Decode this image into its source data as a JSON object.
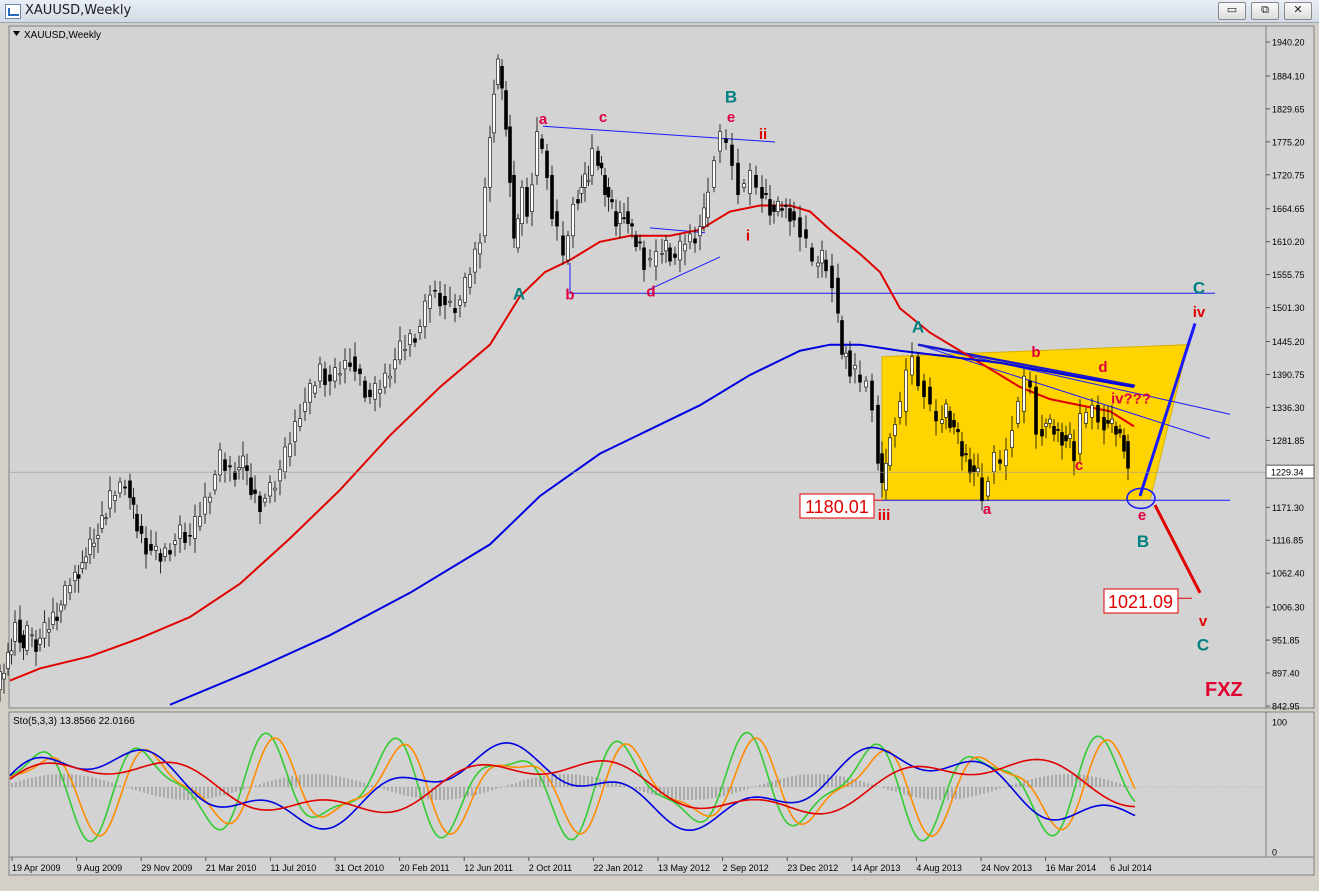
{
  "window": {
    "title": "XAUUSD,Weekly",
    "buttons": {
      "minimize": "▭",
      "restore": "⧉",
      "close": "✕"
    }
  },
  "chart_data": {
    "type": "line",
    "symbol_label": "XAUUSD,Weekly",
    "price_axis": {
      "ticks": [
        "1940.20",
        "1884.10",
        "1829.65",
        "1775.20",
        "1720.75",
        "1664.65",
        "1610.20",
        "1555.75",
        "1501.30",
        "1445.20",
        "1390.75",
        "1336.30",
        "1281.85",
        "1229.34",
        "1171.30",
        "1116.85",
        "1062.40",
        "1006.30",
        "951.85",
        "897.40",
        "842.95"
      ],
      "current_price": "1229.34",
      "ylim": [
        842.95,
        1940.2
      ]
    },
    "time_axis": {
      "labels": [
        "19 Apr 2009",
        "9 Aug 2009",
        "29 Nov 2009",
        "21 Mar 2010",
        "11 Jul 2010",
        "31 Oct 2010",
        "20 Feb 2011",
        "12 Jun 2011",
        "2 Oct 2011",
        "22 Jan 2012",
        "13 May 2012",
        "2 Sep 2012",
        "23 Dec 2012",
        "14 Apr 2013",
        "4 Aug 2013",
        "24 Nov 2013",
        "16 Mar 2014",
        "6 Jul 2014"
      ]
    },
    "price_series": [
      [
        0,
        870
      ],
      [
        8,
        905
      ],
      [
        15,
        950
      ],
      [
        20,
        985
      ],
      [
        27,
        935
      ],
      [
        32,
        960
      ],
      [
        40,
        945
      ],
      [
        49,
        965
      ],
      [
        57,
        990
      ],
      [
        65,
        1010
      ],
      [
        75,
        1050
      ],
      [
        86,
        1080
      ],
      [
        98,
        1120
      ],
      [
        110,
        1170
      ],
      [
        120,
        1195
      ],
      [
        130,
        1215
      ],
      [
        137,
        1160
      ],
      [
        146,
        1120
      ],
      [
        156,
        1100
      ],
      [
        165,
        1090
      ],
      [
        175,
        1110
      ],
      [
        185,
        1130
      ],
      [
        195,
        1120
      ],
      [
        205,
        1160
      ],
      [
        215,
        1200
      ],
      [
        225,
        1250
      ],
      [
        235,
        1230
      ],
      [
        247,
        1240
      ],
      [
        255,
        1200
      ],
      [
        265,
        1180
      ],
      [
        275,
        1200
      ],
      [
        285,
        1230
      ],
      [
        295,
        1280
      ],
      [
        305,
        1330
      ],
      [
        315,
        1360
      ],
      [
        325,
        1400
      ],
      [
        335,
        1380
      ],
      [
        345,
        1400
      ],
      [
        355,
        1420
      ],
      [
        365,
        1380
      ],
      [
        375,
        1350
      ],
      [
        385,
        1370
      ],
      [
        395,
        1400
      ],
      [
        405,
        1430
      ],
      [
        415,
        1450
      ],
      [
        425,
        1470
      ],
      [
        435,
        1530
      ],
      [
        445,
        1520
      ],
      [
        455,
        1500
      ],
      [
        465,
        1510
      ],
      [
        475,
        1560
      ],
      [
        485,
        1620
      ],
      [
        490,
        1700
      ],
      [
        494,
        1790
      ],
      [
        498,
        1870
      ],
      [
        502,
        1900
      ],
      [
        506,
        1860
      ],
      [
        510,
        1800
      ],
      [
        514,
        1720
      ],
      [
        518,
        1600
      ],
      [
        522,
        1640
      ],
      [
        527,
        1700
      ],
      [
        532,
        1660
      ],
      [
        537,
        1720
      ],
      [
        542,
        1780
      ],
      [
        547,
        1760
      ],
      [
        552,
        1720
      ],
      [
        557,
        1660
      ],
      [
        563,
        1620
      ],
      [
        568,
        1580
      ],
      [
        573,
        1620
      ],
      [
        578,
        1680
      ],
      [
        585,
        1700
      ],
      [
        592,
        1720
      ],
      [
        598,
        1760
      ],
      [
        605,
        1720
      ],
      [
        612,
        1680
      ],
      [
        620,
        1640
      ],
      [
        628,
        1660
      ],
      [
        636,
        1620
      ],
      [
        644,
        1600
      ],
      [
        650,
        1580
      ],
      [
        656,
        1570
      ],
      [
        662,
        1590
      ],
      [
        670,
        1600
      ],
      [
        680,
        1580
      ],
      [
        690,
        1610
      ],
      [
        700,
        1620
      ],
      [
        708,
        1650
      ],
      [
        714,
        1700
      ],
      [
        720,
        1760
      ],
      [
        726,
        1780
      ],
      [
        732,
        1770
      ],
      [
        738,
        1740
      ],
      [
        744,
        1700
      ],
      [
        750,
        1690
      ],
      [
        756,
        1720
      ],
      [
        762,
        1700
      ],
      [
        770,
        1680
      ],
      [
        778,
        1660
      ],
      [
        786,
        1670
      ],
      [
        794,
        1660
      ],
      [
        800,
        1650
      ],
      [
        806,
        1630
      ],
      [
        812,
        1600
      ],
      [
        818,
        1570
      ],
      [
        826,
        1580
      ],
      [
        832,
        1570
      ],
      [
        838,
        1550
      ],
      [
        842,
        1480
      ],
      [
        846,
        1420
      ],
      [
        850,
        1430
      ],
      [
        855,
        1400
      ],
      [
        860,
        1390
      ],
      [
        866,
        1370
      ],
      [
        872,
        1380
      ],
      [
        878,
        1340
      ],
      [
        882,
        1260
      ],
      [
        886,
        1200
      ],
      [
        890,
        1240
      ],
      [
        895,
        1290
      ],
      [
        900,
        1320
      ],
      [
        906,
        1330
      ],
      [
        912,
        1390
      ],
      [
        918,
        1420
      ],
      [
        924,
        1380
      ],
      [
        930,
        1370
      ],
      [
        936,
        1330
      ],
      [
        942,
        1310
      ],
      [
        950,
        1330
      ],
      [
        958,
        1300
      ],
      [
        966,
        1260
      ],
      [
        974,
        1240
      ],
      [
        982,
        1220
      ],
      [
        988,
        1190
      ],
      [
        994,
        1230
      ],
      [
        1000,
        1250
      ],
      [
        1006,
        1240
      ],
      [
        1012,
        1270
      ],
      [
        1018,
        1310
      ],
      [
        1024,
        1330
      ],
      [
        1030,
        1380
      ],
      [
        1036,
        1370
      ],
      [
        1042,
        1300
      ],
      [
        1050,
        1310
      ],
      [
        1058,
        1300
      ],
      [
        1066,
        1290
      ],
      [
        1074,
        1280
      ],
      [
        1080,
        1260
      ],
      [
        1086,
        1310
      ],
      [
        1092,
        1320
      ],
      [
        1098,
        1340
      ],
      [
        1104,
        1320
      ],
      [
        1112,
        1310
      ],
      [
        1120,
        1300
      ],
      [
        1128,
        1280
      ],
      [
        1134,
        1240
      ]
    ],
    "series": [
      {
        "color": "#e00000",
        "values": [
          [
            10,
            885
          ],
          [
            40,
            905
          ],
          [
            90,
            925
          ],
          [
            140,
            955
          ],
          [
            190,
            990
          ],
          [
            240,
            1045
          ],
          [
            290,
            1120
          ],
          [
            340,
            1200
          ],
          [
            390,
            1290
          ],
          [
            440,
            1370
          ],
          [
            490,
            1440
          ],
          [
            520,
            1520
          ],
          [
            545,
            1560
          ],
          [
            570,
            1580
          ],
          [
            600,
            1610
          ],
          [
            630,
            1620
          ],
          [
            670,
            1620
          ],
          [
            700,
            1630
          ],
          [
            730,
            1660
          ],
          [
            760,
            1670
          ],
          [
            790,
            1670
          ],
          [
            810,
            1660
          ],
          [
            830,
            1630
          ],
          [
            860,
            1590
          ],
          [
            880,
            1560
          ],
          [
            900,
            1500
          ],
          [
            930,
            1460
          ],
          [
            960,
            1430
          ],
          [
            990,
            1400
          ],
          [
            1020,
            1370
          ],
          [
            1050,
            1350
          ],
          [
            1080,
            1340
          ],
          [
            1110,
            1330
          ],
          [
            1134,
            1305
          ]
        ]
      },
      {
        "color": "#0000e0",
        "values": [
          [
            170,
            845
          ],
          [
            250,
            900
          ],
          [
            330,
            960
          ],
          [
            410,
            1030
          ],
          [
            490,
            1110
          ],
          [
            540,
            1190
          ],
          [
            600,
            1260
          ],
          [
            650,
            1300
          ],
          [
            700,
            1340
          ],
          [
            750,
            1390
          ],
          [
            800,
            1430
          ],
          [
            830,
            1440
          ],
          [
            860,
            1440
          ],
          [
            900,
            1430
          ],
          [
            950,
            1420
          ],
          [
            1000,
            1410
          ],
          [
            1050,
            1395
          ],
          [
            1100,
            1380
          ],
          [
            1134,
            1370
          ]
        ]
      }
    ],
    "stochastic": {
      "label": "Sto(5,3,3) 13.8566 22.0166",
      "ylim": [
        0,
        100
      ],
      "axis_ticks": [
        "100",
        "0"
      ]
    },
    "wave_labels": [
      {
        "text": "A",
        "x": 519,
        "price": 1515,
        "color": "#008080"
      },
      {
        "text": "a",
        "x": 543,
        "price": 1805,
        "color": "#e00040"
      },
      {
        "text": "c",
        "x": 603,
        "price": 1808,
        "color": "#e00040"
      },
      {
        "text": "B",
        "x": 731,
        "price": 1840,
        "color": "#008080"
      },
      {
        "text": "e",
        "x": 731,
        "price": 1808,
        "color": "#e00040"
      },
      {
        "text": "ii",
        "x": 763,
        "price": 1780,
        "color": "#e00000"
      },
      {
        "text": "i",
        "x": 748,
        "price": 1612,
        "color": "#e00000"
      },
      {
        "text": "b",
        "x": 570,
        "price": 1515,
        "color": "#e00040"
      },
      {
        "text": "d",
        "x": 651,
        "price": 1520,
        "color": "#e00040"
      },
      {
        "text": "A",
        "x": 918,
        "price": 1460,
        "color": "#008080"
      },
      {
        "text": "b",
        "x": 1036,
        "price": 1420,
        "color": "#e00040"
      },
      {
        "text": "d",
        "x": 1103,
        "price": 1395,
        "color": "#e00040"
      },
      {
        "text": "iv???",
        "x": 1131,
        "price": 1343,
        "color": "#e00040"
      },
      {
        "text": "c",
        "x": 1079,
        "price": 1233,
        "color": "#e00040"
      },
      {
        "text": "a",
        "x": 987,
        "price": 1160,
        "color": "#e00040"
      },
      {
        "text": "iii",
        "x": 884,
        "price": 1150,
        "color": "#e00000"
      },
      {
        "text": "e",
        "x": 1142,
        "price": 1150,
        "color": "#e00040"
      },
      {
        "text": "B",
        "x": 1143,
        "price": 1106,
        "color": "#008080"
      },
      {
        "text": "C",
        "x": 1199,
        "price": 1525,
        "color": "#008080"
      },
      {
        "text": "iv",
        "x": 1199,
        "price": 1486,
        "color": "#e00000"
      },
      {
        "text": "v",
        "x": 1203,
        "price": 975,
        "color": "#e00000"
      },
      {
        "text": "C",
        "x": 1203,
        "price": 935,
        "color": "#008080"
      }
    ],
    "price_boxes": [
      {
        "text": "1180.01",
        "color": "#e00000"
      },
      {
        "text": "1021.09",
        "color": "#e00000"
      }
    ],
    "watermark": "FXZ"
  }
}
